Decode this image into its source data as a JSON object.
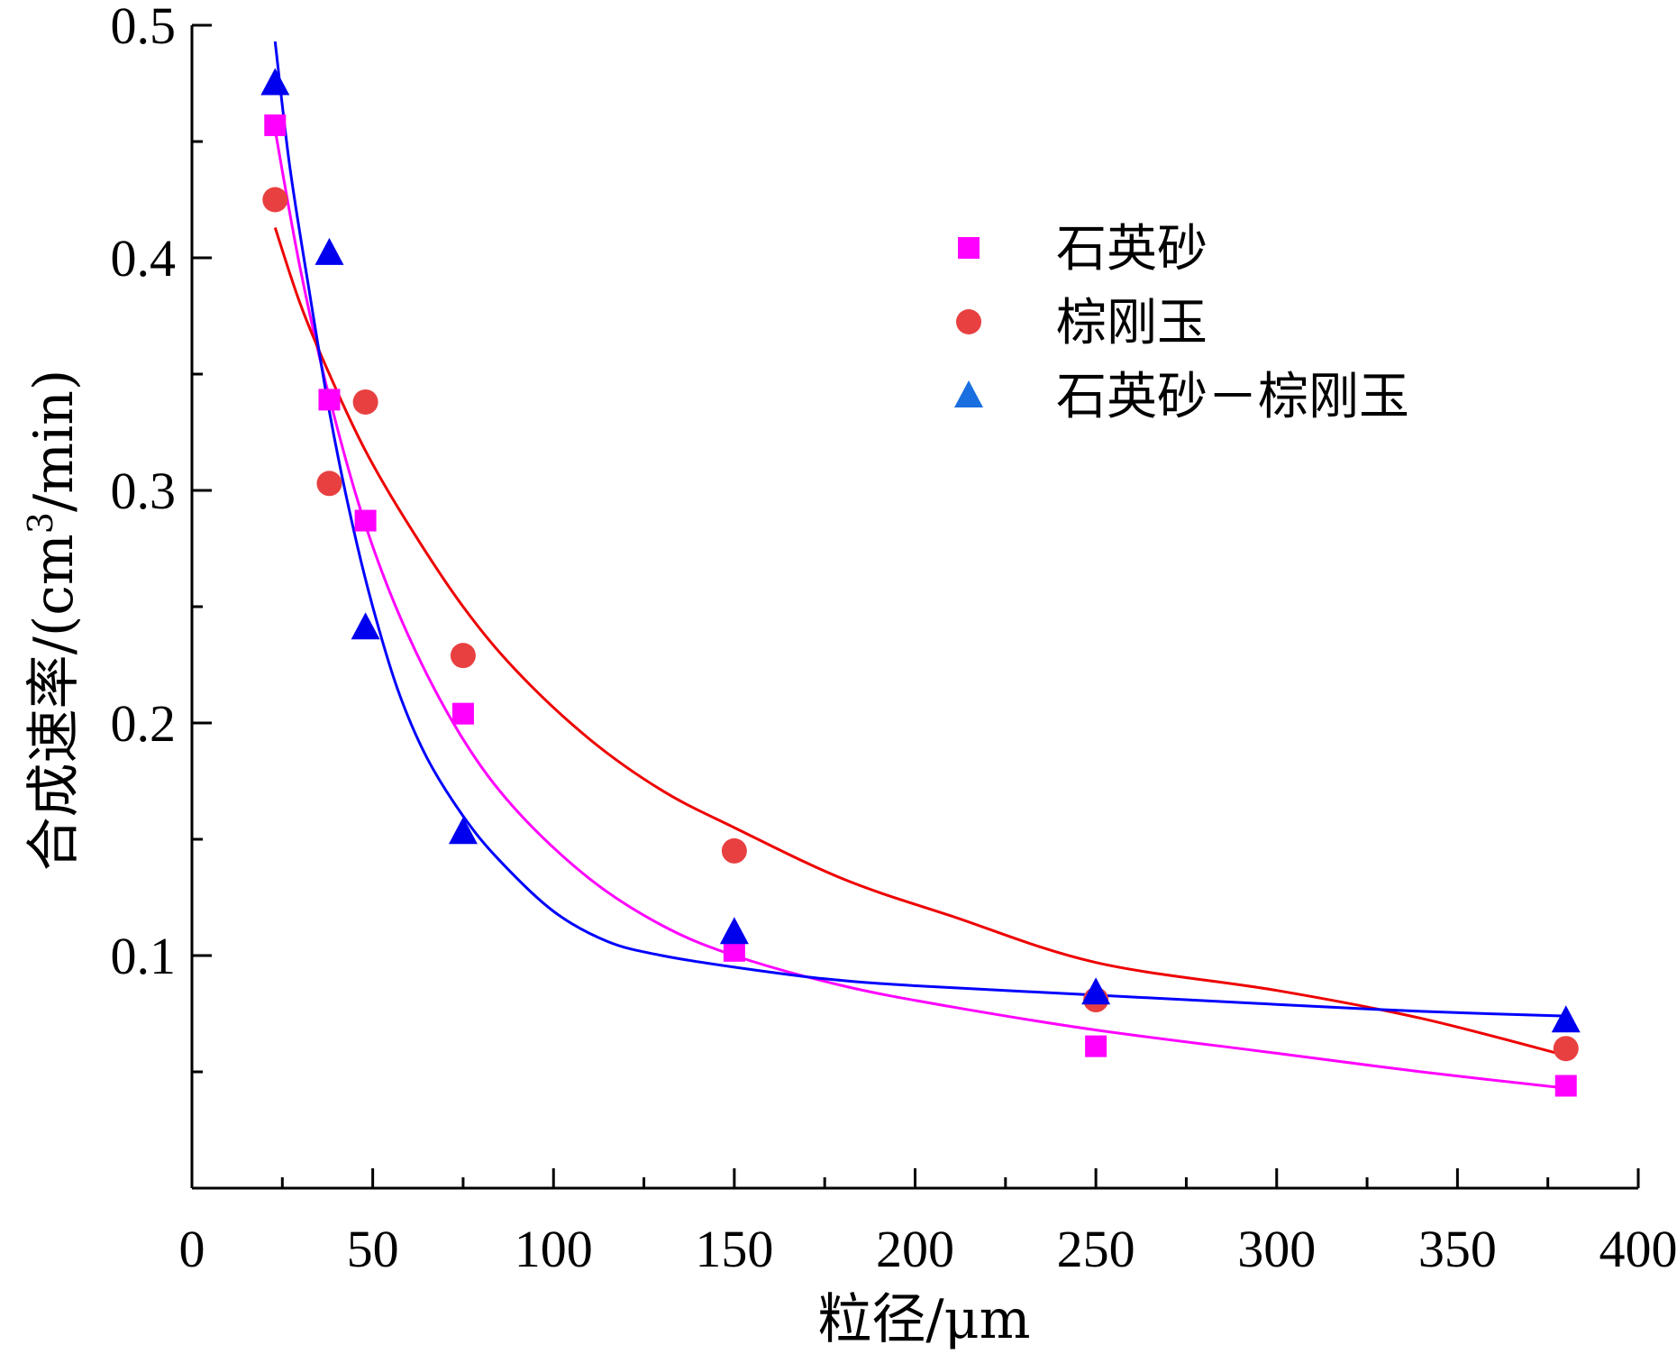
{
  "chart_data": {
    "type": "scatter",
    "xlabel": "粒径/μm",
    "ylabel_prefix": "合成速率/(cm",
    "ylabel_sup": "3",
    "ylabel_suffix": "/min)",
    "xlim": [
      0,
      400
    ],
    "ylim": [
      0.0,
      0.5
    ],
    "x_ticks": [
      0,
      50,
      100,
      150,
      200,
      250,
      300,
      350,
      400
    ],
    "y_ticks": [
      0.1,
      0.2,
      0.3,
      0.4,
      0.5
    ],
    "x_tick_labels": [
      "0",
      "50",
      "100",
      "150",
      "200",
      "250",
      "300",
      "350",
      "400"
    ],
    "y_tick_labels": [
      "0.1",
      "0.2",
      "0.3",
      "0.4",
      "0.5"
    ],
    "grid": false,
    "legend_position": "top-right",
    "series": [
      {
        "name": "石英砂",
        "marker": "square",
        "color": "#ff00ff",
        "fit_color": "#ff00ff",
        "x": [
          23,
          38,
          48,
          75,
          150,
          250,
          380
        ],
        "y": [
          0.457,
          0.339,
          0.287,
          0.204,
          0.102,
          0.061,
          0.044
        ],
        "fit": {
          "x": [
            23,
            30,
            38,
            48,
            60,
            75,
            90,
            110,
            130,
            150,
            180,
            210,
            250,
            300,
            340,
            380
          ],
          "y": [
            0.455,
            0.395,
            0.34,
            0.285,
            0.237,
            0.193,
            0.162,
            0.133,
            0.113,
            0.1,
            0.087,
            0.078,
            0.068,
            0.058,
            0.05,
            0.043
          ]
        }
      },
      {
        "name": "棕刚玉",
        "marker": "circle",
        "color": "#e84040",
        "fit_color": "#ee0000",
        "x": [
          23,
          38,
          48,
          75,
          150,
          250,
          380
        ],
        "y": [
          0.425,
          0.303,
          0.338,
          0.229,
          0.145,
          0.081,
          0.06
        ],
        "fit": {
          "x": [
            23,
            30,
            38,
            48,
            60,
            75,
            90,
            110,
            130,
            150,
            180,
            210,
            250,
            300,
            340,
            380
          ],
          "y": [
            0.413,
            0.38,
            0.35,
            0.317,
            0.285,
            0.25,
            0.222,
            0.193,
            0.171,
            0.155,
            0.133,
            0.117,
            0.097,
            0.085,
            0.073,
            0.057
          ]
        }
      },
      {
        "name": "石英砂－棕刚玉",
        "marker": "triangle",
        "color": "#0000ee",
        "fit_color": "#0000ff",
        "x": [
          23,
          38,
          48,
          75,
          150,
          250,
          380
        ],
        "y": [
          0.475,
          0.402,
          0.241,
          0.153,
          0.11,
          0.084,
          0.072
        ],
        "fit": {
          "x": [
            23,
            27,
            32,
            38,
            44,
            50,
            57,
            65,
            75,
            85,
            100,
            115,
            130,
            150,
            175,
            200,
            250,
            300,
            340,
            380
          ],
          "y": [
            0.493,
            0.44,
            0.39,
            0.334,
            0.288,
            0.25,
            0.214,
            0.185,
            0.16,
            0.141,
            0.119,
            0.106,
            0.1,
            0.095,
            0.09,
            0.087,
            0.083,
            0.079,
            0.076,
            0.074
          ]
        }
      }
    ]
  }
}
